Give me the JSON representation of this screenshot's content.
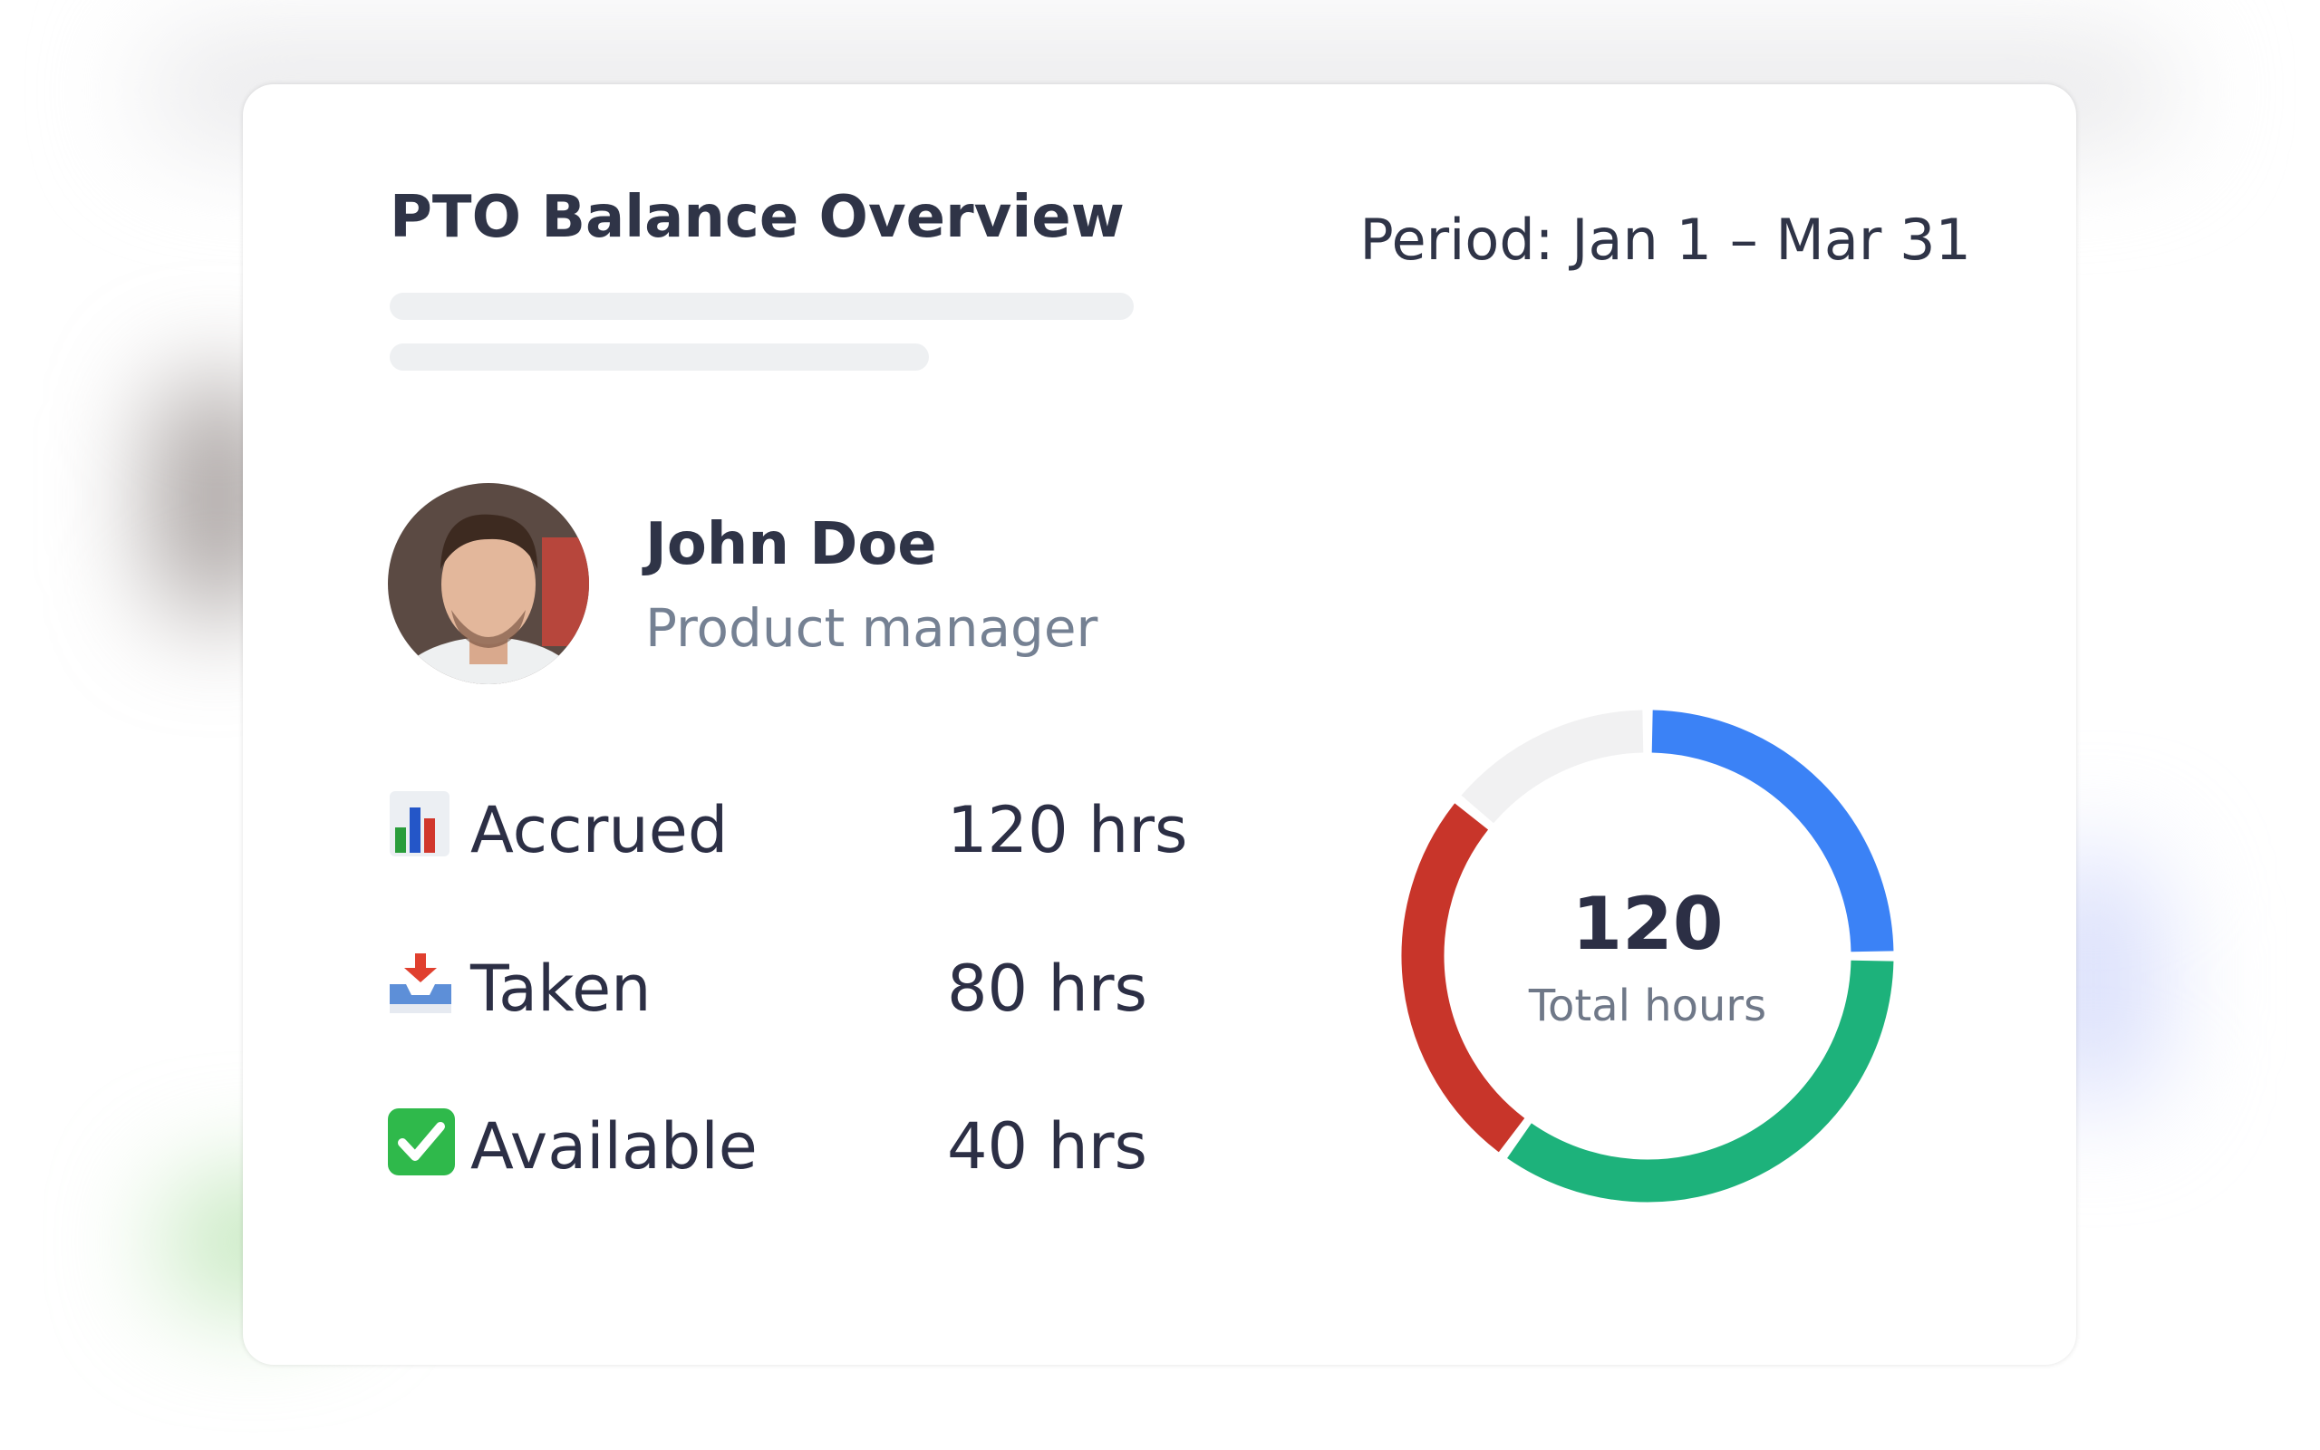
{
  "header": {
    "title": "PTO Balance Overview",
    "period": "Period: Jan 1 – Mar 31"
  },
  "profile": {
    "name": "John Doe",
    "role": "Product manager"
  },
  "stats": [
    {
      "label": "Accrued",
      "value": "120 hrs"
    },
    {
      "label": "Taken",
      "value": "80 hrs"
    },
    {
      "label": "Available",
      "value": "40 hrs"
    }
  ],
  "chart_data": {
    "type": "donut",
    "center_value": "120",
    "center_label": "Total hours",
    "series": [
      {
        "color": "#3b82f6",
        "value": 25
      },
      {
        "color": "#1db27b",
        "value": 35
      },
      {
        "color": "#c8352a",
        "value": 26
      },
      {
        "color": "#f1f1f2",
        "value": 14
      }
    ]
  }
}
